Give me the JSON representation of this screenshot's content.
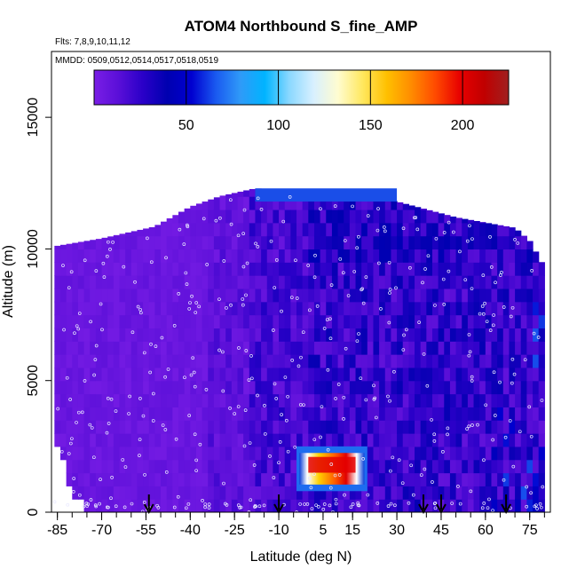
{
  "chart_data": {
    "type": "heatmap",
    "title": "ATOM4 Northbound S_fine_AMP",
    "subtitle_flights": "Flts: 7,8,9,10,11,12",
    "subtitle_dates": "MMDD: 0509,0512,0514,0517,0518,0519",
    "xlabel": "Latitude (deg N)",
    "ylabel": "Altitude (m)",
    "xlim": [
      -87,
      82
    ],
    "ylim": [
      0,
      17500
    ],
    "x_ticks": [
      -85,
      -70,
      -55,
      -40,
      -25,
      -10,
      5,
      15,
      30,
      45,
      60,
      75
    ],
    "x_tick_labels": [
      "-85",
      "-70",
      "-55",
      "-40",
      "-25",
      "-10",
      "5",
      "15",
      "30",
      "45",
      "60",
      "75"
    ],
    "x_minor_step": 5,
    "y_ticks": [
      0,
      5000,
      10000,
      15000
    ],
    "y_tick_labels": [
      "0",
      "5000",
      "10000",
      "15000"
    ],
    "colorbar": {
      "range": [
        0,
        225
      ],
      "ticks": [
        50,
        100,
        150,
        200
      ],
      "tick_labels": [
        "50",
        "100",
        "150",
        "200"
      ],
      "colors": [
        "#7a1ee6",
        "#5a0fd8",
        "#2a00c8",
        "#0000b0",
        "#0000d0",
        "#1a5af0",
        "#2f9af8",
        "#00b4ff",
        "#8ad8ff",
        "#d8f0ff",
        "#fffcd0",
        "#ffe860",
        "#ffc000",
        "#ff8c00",
        "#ff4a00",
        "#e80000",
        "#c00000",
        "#a02020"
      ]
    },
    "flight_arrows_lat": [
      -54,
      -10,
      39,
      45,
      67
    ],
    "ceiling": [
      [
        -86,
        10100
      ],
      [
        -70,
        10400
      ],
      [
        -52,
        10850
      ],
      [
        -40,
        11600
      ],
      [
        -30,
        12000
      ],
      [
        -18,
        12300
      ],
      [
        -8,
        12250
      ],
      [
        5,
        12100
      ],
      [
        20,
        12000
      ],
      [
        30,
        11800
      ],
      [
        40,
        11500
      ],
      [
        50,
        11200
      ],
      [
        60,
        11000
      ],
      [
        70,
        10800
      ],
      [
        75,
        10300
      ],
      [
        79,
        9500
      ],
      [
        80,
        9000
      ]
    ],
    "low_edge": [
      [
        -86,
        3000
      ],
      [
        -84,
        2400
      ],
      [
        -82,
        1600
      ],
      [
        -80,
        1100
      ],
      [
        -78,
        700
      ]
    ],
    "hotspot": {
      "lat": [
        -4,
        20
      ],
      "alt": [
        800,
        2500
      ],
      "peak": 215
    }
  }
}
